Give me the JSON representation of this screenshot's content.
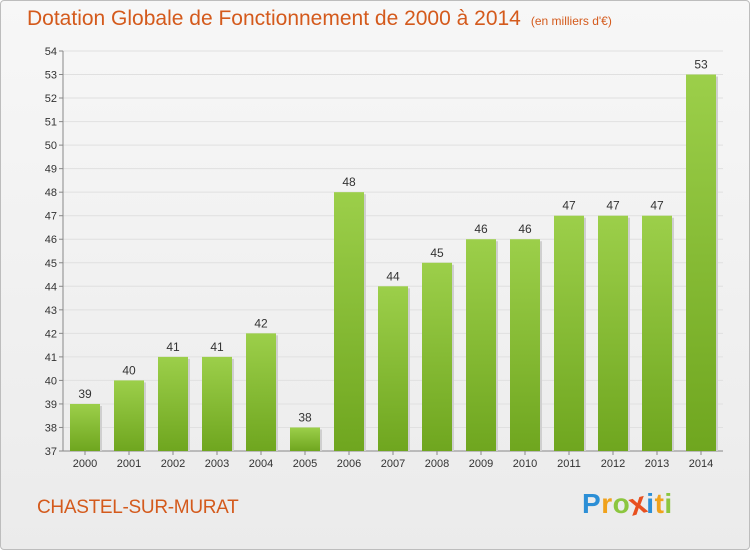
{
  "chart_data": {
    "type": "bar",
    "title": "Dotation Globale de Fonctionnement de 2000 à 2014",
    "subtitle": "(en milliers d'€)",
    "categories": [
      "2000",
      "2001",
      "2002",
      "2003",
      "2004",
      "2005",
      "2006",
      "2007",
      "2008",
      "2009",
      "2010",
      "2011",
      "2012",
      "2013",
      "2014"
    ],
    "values": [
      39,
      40,
      41,
      41,
      42,
      38,
      48,
      44,
      45,
      46,
      46,
      47,
      47,
      47,
      53
    ],
    "value_labels": [
      "39",
      "40",
      "41",
      "41",
      "42",
      "38",
      "48",
      "44",
      "45",
      "46",
      "46",
      "47",
      "47",
      "47",
      "53"
    ],
    "ylim": [
      37,
      54
    ],
    "yticks": [
      "37",
      "38",
      "39",
      "40",
      "41",
      "42",
      "43",
      "44",
      "45",
      "46",
      "47",
      "48",
      "49",
      "50",
      "51",
      "52",
      "53",
      "54"
    ],
    "xlabel": "",
    "ylabel": "",
    "grid": true,
    "colors": {
      "bar_light": "#9ccf4a",
      "bar_dark": "#6fa61f",
      "title": "#d45a1c"
    }
  },
  "commune": "CHASTEL-SUR-MURAT",
  "logo": {
    "letters": [
      "P",
      "r",
      "o",
      "x",
      "i",
      "t",
      "i"
    ],
    "colors": [
      "#2c8fd6",
      "#f0a21c",
      "#8cc63f",
      "#e8501f",
      "#2c8fd6",
      "#f0a21c",
      "#8cc63f"
    ]
  }
}
